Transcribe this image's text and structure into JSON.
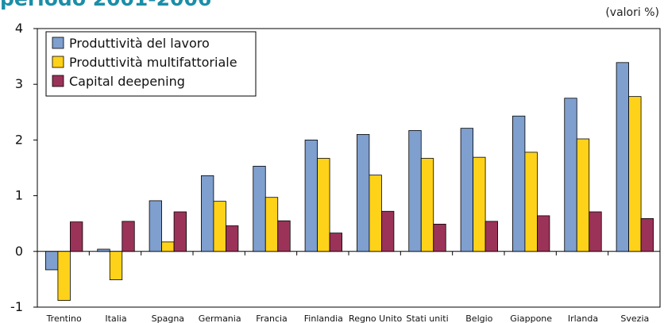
{
  "chart_data": {
    "type": "bar",
    "title": "periodo 2001-2006",
    "unit_note": "(valori %)",
    "categories": [
      "Trentino",
      "Italia",
      "Spagna",
      "Germania",
      "Francia",
      "Finlandia",
      "Regno Unito",
      "Stati uniti",
      "Belgio",
      "Giappone",
      "Irlanda",
      "Svezia"
    ],
    "series": [
      {
        "name": "Produttività del lavoro",
        "color": "#7f9fce",
        "values": [
          -0.33,
          0.04,
          0.91,
          1.36,
          1.53,
          2.0,
          2.1,
          2.17,
          2.21,
          2.43,
          2.75,
          3.39
        ]
      },
      {
        "name": "Produttività multifattoriale",
        "color": "#ffd21a",
        "values": [
          -0.88,
          -0.51,
          0.17,
          0.9,
          0.97,
          1.67,
          1.37,
          1.67,
          1.69,
          1.78,
          2.02,
          2.78
        ]
      },
      {
        "name": "Capital deepening",
        "color": "#9b3358",
        "values": [
          0.53,
          0.54,
          0.71,
          0.46,
          0.55,
          0.33,
          0.72,
          0.49,
          0.54,
          0.64,
          0.71,
          0.59
        ]
      }
    ],
    "yticks": [
      4,
      3,
      2,
      1,
      0,
      -1
    ],
    "ylim": [
      -1,
      4
    ],
    "grid": false,
    "legend": "top-left"
  }
}
